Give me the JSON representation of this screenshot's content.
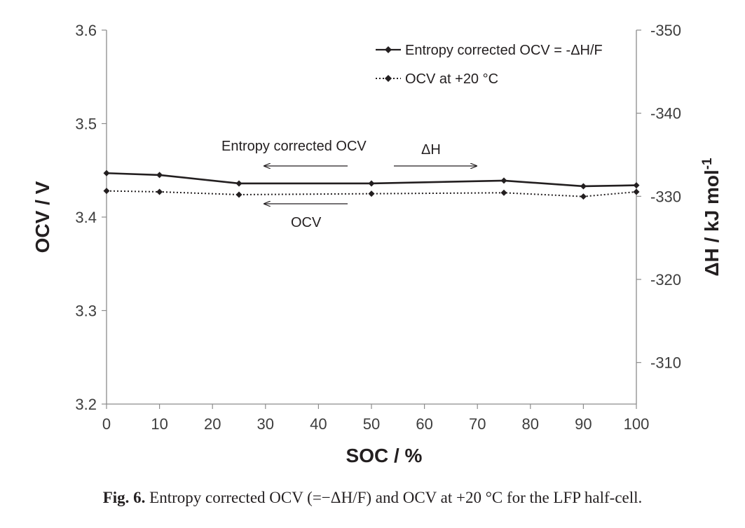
{
  "chart_data": {
    "type": "line",
    "x": [
      0,
      10,
      25,
      50,
      75,
      90,
      100
    ],
    "series": [
      {
        "name": "Entropy corrected OCV = -ΔH/F",
        "style": "solid",
        "color": "#231f20",
        "values": [
          3.447,
          3.445,
          3.436,
          3.436,
          3.439,
          3.433,
          3.434
        ]
      },
      {
        "name": "OCV at +20 °C",
        "style": "dotted",
        "color": "#231f20",
        "values": [
          3.428,
          3.427,
          3.424,
          3.425,
          3.426,
          3.422,
          3.427
        ]
      }
    ],
    "xlabel": "SOC / %",
    "ylabel": "OCV / V",
    "y2label_main": "ΔH / kJ mol",
    "y2label_sup": "-1",
    "xlim": [
      0,
      100
    ],
    "ylim": [
      3.2,
      3.6
    ],
    "y2lim": [
      -305,
      -350
    ],
    "xticks": [
      "0",
      "10",
      "20",
      "30",
      "40",
      "50",
      "60",
      "70",
      "80",
      "90",
      "100"
    ],
    "yticks": [
      "3.2",
      "3.3",
      "3.4",
      "3.5",
      "3.6"
    ],
    "y2ticks": [
      "-310",
      "-320",
      "-330",
      "-340",
      "-350"
    ],
    "legend_position": "top-right",
    "annotations": [
      {
        "text": "Entropy corrected OCV",
        "arrow": "left"
      },
      {
        "text": "ΔH",
        "arrow": "right"
      },
      {
        "text": "OCV",
        "arrow": "left"
      }
    ],
    "grid": false
  },
  "caption": {
    "label": "Fig. 6.",
    "text": "Entropy corrected OCV (=−ΔH/F) and OCV at +20 °C for the LFP half-cell."
  }
}
